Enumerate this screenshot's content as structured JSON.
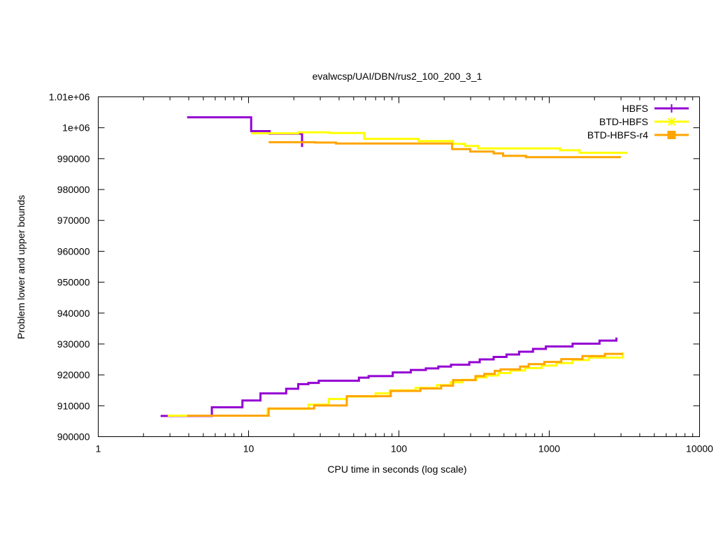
{
  "chart_data": {
    "type": "line",
    "title": "evalwcsp/UAI/DBN/rus2_100_200_3_1",
    "xlabel": "CPU time in seconds (log scale)",
    "ylabel": "Problem lower and upper bounds",
    "xscale": "log",
    "xlim": [
      1,
      10000
    ],
    "ylim": [
      900000,
      1010000
    ],
    "xticks": [
      1,
      10,
      100,
      1000,
      10000
    ],
    "xtick_labels": [
      "1",
      "10",
      "100",
      "1000",
      "10000"
    ],
    "yticks": [
      900000,
      910000,
      920000,
      930000,
      940000,
      950000,
      960000,
      970000,
      980000,
      990000,
      1000000,
      1010000
    ],
    "ytick_labels": [
      "900000",
      "910000",
      "920000",
      "930000",
      "940000",
      "950000",
      "960000",
      "970000",
      "980000",
      "990000",
      "1e+06",
      "1.01e+06"
    ],
    "grid": false,
    "legend_position": "top-right",
    "line_style": "step",
    "series": [
      {
        "name": "HBFS",
        "color": "#9400d3",
        "marker": "plus",
        "upper": [
          [
            3.9,
            1003400
          ],
          [
            10.4,
            1003400
          ],
          [
            10.4,
            998900
          ],
          [
            13.8,
            998900
          ],
          [
            13.8,
            998100
          ],
          [
            22.7,
            998100
          ],
          [
            22.7,
            993800
          ]
        ],
        "lower": [
          [
            2.6,
            906700
          ],
          [
            5.7,
            906700
          ],
          [
            5.7,
            909500
          ],
          [
            9.1,
            909500
          ],
          [
            9.1,
            911700
          ],
          [
            12.0,
            911700
          ],
          [
            12.0,
            914000
          ],
          [
            17.8,
            914000
          ],
          [
            17.8,
            915500
          ],
          [
            21.4,
            915500
          ],
          [
            21.4,
            917000
          ],
          [
            25.0,
            917000
          ],
          [
            25.0,
            917400
          ],
          [
            29.3,
            917400
          ],
          [
            29.3,
            918100
          ],
          [
            54.2,
            918100
          ],
          [
            54.2,
            919100
          ],
          [
            62.9,
            919100
          ],
          [
            62.9,
            919600
          ],
          [
            91.0,
            919600
          ],
          [
            91.0,
            920800
          ],
          [
            120,
            920800
          ],
          [
            120,
            921600
          ],
          [
            151,
            921600
          ],
          [
            151,
            922100
          ],
          [
            183,
            922100
          ],
          [
            183,
            922700
          ],
          [
            222,
            922700
          ],
          [
            222,
            923300
          ],
          [
            294,
            923300
          ],
          [
            294,
            924100
          ],
          [
            345,
            924100
          ],
          [
            345,
            925000
          ],
          [
            427,
            925000
          ],
          [
            427,
            925800
          ],
          [
            520,
            925800
          ],
          [
            520,
            926600
          ],
          [
            630,
            926600
          ],
          [
            630,
            927500
          ],
          [
            780,
            927500
          ],
          [
            780,
            928400
          ],
          [
            950,
            928400
          ],
          [
            950,
            929200
          ],
          [
            1430,
            929200
          ],
          [
            1430,
            930100
          ],
          [
            2160,
            930100
          ],
          [
            2160,
            931100
          ],
          [
            2800,
            931100
          ],
          [
            2800,
            932100
          ]
        ]
      },
      {
        "name": "BTD-HBFS",
        "color": "#ffff00",
        "marker": "star",
        "upper": [
          [
            10.4,
            998200
          ],
          [
            21.4,
            998200
          ],
          [
            21.4,
            998500
          ],
          [
            34.5,
            998500
          ],
          [
            34.5,
            998300
          ],
          [
            58.8,
            998300
          ],
          [
            58.8,
            996400
          ],
          [
            135,
            996400
          ],
          [
            135,
            995700
          ],
          [
            229,
            995700
          ],
          [
            229,
            994800
          ],
          [
            275,
            994800
          ],
          [
            275,
            994100
          ],
          [
            336,
            994100
          ],
          [
            336,
            993300
          ],
          [
            1178,
            993300
          ],
          [
            1178,
            992700
          ],
          [
            1591,
            992700
          ],
          [
            1591,
            991900
          ],
          [
            3300,
            991900
          ]
        ],
        "lower": [
          [
            2.9,
            906800
          ],
          [
            13.4,
            906800
          ],
          [
            13.4,
            909000
          ],
          [
            25.0,
            909000
          ],
          [
            25.0,
            910400
          ],
          [
            34.2,
            910400
          ],
          [
            34.2,
            912200
          ],
          [
            45.0,
            912200
          ],
          [
            45.0,
            913000
          ],
          [
            70.0,
            913000
          ],
          [
            70.0,
            914000
          ],
          [
            87.0,
            914000
          ],
          [
            87.0,
            915000
          ],
          [
            129,
            915000
          ],
          [
            129,
            915800
          ],
          [
            179,
            915800
          ],
          [
            179,
            916700
          ],
          [
            220,
            916700
          ],
          [
            220,
            917600
          ],
          [
            265,
            917600
          ],
          [
            265,
            918400
          ],
          [
            328,
            918400
          ],
          [
            328,
            919200
          ],
          [
            383,
            919200
          ],
          [
            383,
            919800
          ],
          [
            457,
            919800
          ],
          [
            457,
            920600
          ],
          [
            550,
            920600
          ],
          [
            550,
            921400
          ],
          [
            690,
            921400
          ],
          [
            690,
            922200
          ],
          [
            890,
            922200
          ],
          [
            890,
            923000
          ],
          [
            1115,
            923000
          ],
          [
            1115,
            923800
          ],
          [
            1424,
            923800
          ],
          [
            1424,
            924800
          ],
          [
            1840,
            924800
          ],
          [
            1840,
            925600
          ],
          [
            3090,
            925600
          ],
          [
            3090,
            927300
          ]
        ]
      },
      {
        "name": "BTD-HBFS-r4",
        "color": "#ffa500",
        "marker": "square",
        "upper": [
          [
            13.6,
            995300
          ],
          [
            27.8,
            995300
          ],
          [
            27.8,
            995200
          ],
          [
            38.2,
            995200
          ],
          [
            38.2,
            994900
          ],
          [
            226,
            994900
          ],
          [
            226,
            993100
          ],
          [
            298,
            993100
          ],
          [
            298,
            992300
          ],
          [
            427,
            992300
          ],
          [
            427,
            991700
          ],
          [
            493,
            991700
          ],
          [
            493,
            990900
          ],
          [
            700,
            990900
          ],
          [
            700,
            990500
          ],
          [
            3000,
            990500
          ]
        ],
        "lower": [
          [
            3.9,
            906800
          ],
          [
            13.6,
            906800
          ],
          [
            13.6,
            909100
          ],
          [
            27.3,
            909100
          ],
          [
            27.3,
            910100
          ],
          [
            45.0,
            910100
          ],
          [
            45.0,
            913100
          ],
          [
            88.3,
            913100
          ],
          [
            88.3,
            914800
          ],
          [
            139,
            914800
          ],
          [
            139,
            915600
          ],
          [
            191,
            915600
          ],
          [
            191,
            916500
          ],
          [
            229,
            916500
          ],
          [
            229,
            918300
          ],
          [
            323,
            918300
          ],
          [
            323,
            919600
          ],
          [
            370,
            919600
          ],
          [
            370,
            920300
          ],
          [
            434,
            920300
          ],
          [
            434,
            921300
          ],
          [
            475,
            921300
          ],
          [
            475,
            921800
          ],
          [
            640,
            921800
          ],
          [
            640,
            922700
          ],
          [
            730,
            922700
          ],
          [
            730,
            923500
          ],
          [
            928,
            923500
          ],
          [
            928,
            924200
          ],
          [
            1202,
            924200
          ],
          [
            1202,
            925100
          ],
          [
            1663,
            925100
          ],
          [
            1663,
            926100
          ],
          [
            2346,
            926100
          ],
          [
            2346,
            926800
          ],
          [
            3090,
            926800
          ]
        ]
      }
    ]
  }
}
